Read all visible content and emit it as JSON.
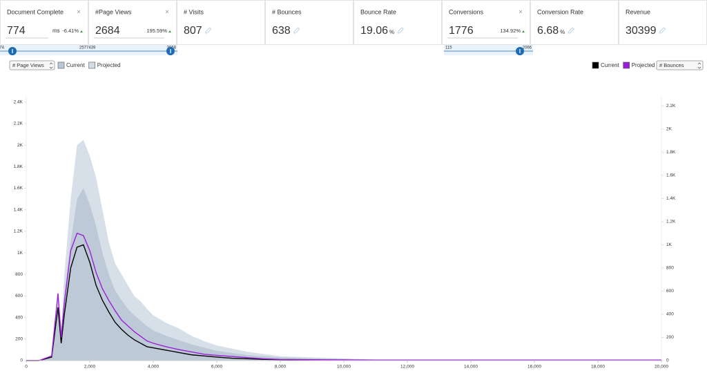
{
  "cards": [
    {
      "title": "Document Complete",
      "value": "774",
      "unit": "ms",
      "change": "-6.41%",
      "editable": true
    },
    {
      "title": "#Page Views",
      "value": "2684",
      "change": "195.59%",
      "editable": true
    },
    {
      "title": "# Visits",
      "value": "807"
    },
    {
      "title": "# Bounces",
      "value": "638"
    },
    {
      "title": "Bounce Rate",
      "value": "19.06",
      "unit": "%"
    },
    {
      "title": "Conversions",
      "value": "1776",
      "change": "134.92%",
      "editable": true
    },
    {
      "title": "Conversion Rate",
      "value": "6.68",
      "unit": "%"
    },
    {
      "title": "Revenue",
      "value": "30399"
    }
  ],
  "sliders": [
    {
      "min_label": "474",
      "mid_label": "2577439",
      "max_label": "3968"
    },
    {
      "min_label": "115",
      "max_label": "2066"
    }
  ],
  "chart_data": {
    "type": "area",
    "y_selector": "# Page Views",
    "y2_selector": "# Bounces",
    "x": [
      0,
      400,
      800,
      1000,
      1100,
      1200,
      1400,
      1600,
      1800,
      2000,
      2200,
      2400,
      2600,
      2800,
      3000,
      3200,
      3400,
      3600,
      3800,
      4000,
      4400,
      4800,
      5200,
      5600,
      6000,
      6500,
      7000,
      7500,
      8000,
      9000,
      10000,
      11000,
      12000,
      14000,
      16000,
      18000,
      20000
    ],
    "series": [
      {
        "name": "Projected",
        "type": "area",
        "color": "#d3dce6",
        "values": [
          0,
          0,
          40,
          650,
          300,
          800,
          1500,
          2000,
          2050,
          1900,
          1700,
          1400,
          1100,
          900,
          800,
          700,
          600,
          550,
          480,
          420,
          350,
          300,
          230,
          180,
          140,
          110,
          80,
          60,
          40,
          30,
          20,
          10,
          10,
          10,
          5,
          5,
          5
        ]
      },
      {
        "name": "Current",
        "type": "area",
        "color": "#bac7d4",
        "values": [
          0,
          0,
          30,
          500,
          200,
          600,
          1100,
          1500,
          1600,
          1450,
          1250,
          1000,
          800,
          650,
          560,
          480,
          420,
          370,
          320,
          280,
          230,
          190,
          150,
          120,
          90,
          70,
          50,
          40,
          30,
          20,
          15,
          8,
          8,
          8,
          4,
          4,
          4
        ]
      },
      {
        "name": "Current",
        "type": "line",
        "axis": "y2",
        "color": "#000000",
        "values": [
          0,
          0,
          30,
          460,
          150,
          400,
          800,
          980,
          1000,
          850,
          650,
          520,
          420,
          330,
          270,
          220,
          180,
          150,
          120,
          110,
          90,
          70,
          50,
          40,
          30,
          20,
          15,
          10,
          8,
          5,
          5,
          3,
          3,
          3,
          3,
          3,
          3
        ]
      },
      {
        "name": "Projected",
        "type": "line",
        "axis": "y2",
        "color": "#9b1fd8",
        "values": [
          0,
          0,
          40,
          580,
          200,
          500,
          950,
          1100,
          1080,
          950,
          760,
          620,
          520,
          430,
          350,
          300,
          250,
          210,
          170,
          150,
          120,
          95,
          75,
          55,
          45,
          35,
          25,
          15,
          10,
          8,
          6,
          5,
          5,
          5,
          5,
          5,
          5
        ]
      }
    ],
    "xlim": [
      0,
      20000
    ],
    "xticks": [
      0,
      {
        "value": 2000,
        "label": "2,000"
      },
      {
        "value": 4000,
        "label": "4,000"
      },
      {
        "value": 6000,
        "label": "6,000"
      },
      {
        "value": 8000,
        "label": "8,000"
      },
      {
        "value": 10000,
        "label": "10,000"
      },
      {
        "value": 12000,
        "label": "12,000"
      },
      {
        "value": 14000,
        "label": "14,000"
      },
      {
        "value": 16000,
        "label": "16,000"
      },
      {
        "value": 18000,
        "label": "18,000"
      },
      {
        "value": 20000,
        "label": "20,000"
      }
    ],
    "ylim": [
      0,
      2450
    ],
    "yticks": [
      0,
      200,
      400,
      600,
      800,
      {
        "value": 1000,
        "label": "1K"
      },
      {
        "value": 1200,
        "label": "1.2K"
      },
      {
        "value": 1400,
        "label": "1.4K"
      },
      {
        "value": 1600,
        "label": "1.6K"
      },
      {
        "value": 1800,
        "label": "1.8K"
      },
      {
        "value": 2000,
        "label": "2K"
      },
      {
        "value": 2200,
        "label": "2.2K"
      },
      {
        "value": 2400,
        "label": "2.4K"
      }
    ],
    "y2lim": [
      0,
      2280
    ],
    "y2ticks": [
      0,
      200,
      400,
      600,
      800,
      {
        "value": 1000,
        "label": "1K"
      },
      {
        "value": 1200,
        "label": "1.2K"
      },
      {
        "value": 1400,
        "label": "1.4K"
      },
      {
        "value": 1600,
        "label": "1.6K"
      },
      {
        "value": 1800,
        "label": "1.8K"
      },
      {
        "value": 2000,
        "label": "2K"
      },
      {
        "value": 2200,
        "label": "2.2K"
      }
    ]
  }
}
